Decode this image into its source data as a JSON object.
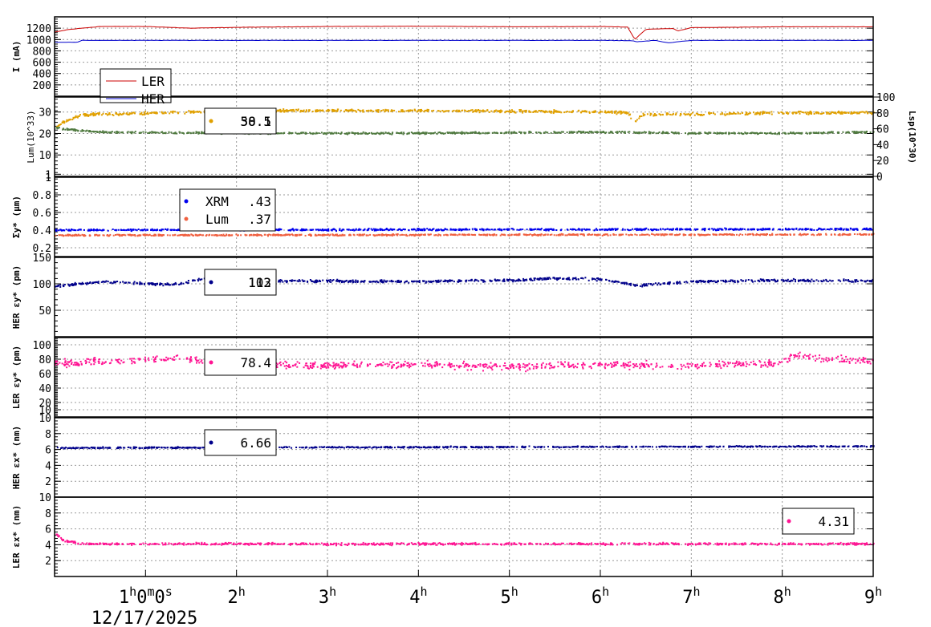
{
  "chart_data": {
    "type": "line",
    "x_axis": {
      "unit": "hours",
      "range": [
        0,
        9
      ],
      "tick_labels": [
        "1h0m0s",
        "2h",
        "3h",
        "4h",
        "5h",
        "6h",
        "7h",
        "8h",
        "9h"
      ],
      "tick_values": [
        1,
        2,
        3,
        4,
        5,
        6,
        7,
        8,
        9
      ],
      "date_label": "12/17/2025"
    },
    "grid": true,
    "panels": [
      {
        "ylabel": "I (mA)",
        "ylim": [
          0,
          1400
        ],
        "yticks": [
          200,
          400,
          600,
          800,
          1000,
          1200
        ],
        "legend": {
          "placement": "bottom-left",
          "entries": [
            "LER",
            "HER"
          ]
        },
        "series": [
          {
            "name": "LER",
            "color": "#cc0000",
            "style": "line",
            "x": [
              0,
              0.15,
              0.3,
              0.5,
              1,
              1.5,
              2,
              3,
              4,
              5,
              6,
              6.3,
              6.38,
              6.5,
              6.8,
              6.85,
              7,
              8,
              9
            ],
            "y": [
              1130,
              1175,
              1200,
              1230,
              1230,
              1200,
              1215,
              1230,
              1235,
              1225,
              1230,
              1220,
              1000,
              1180,
              1195,
              1150,
              1210,
              1225,
              1225
            ]
          },
          {
            "name": "HER",
            "color": "#0000cc",
            "style": "line",
            "x": [
              0,
              0.25,
              0.3,
              1,
              2,
              3,
              4,
              5,
              6,
              6.35,
              6.4,
              6.6,
              6.75,
              6.9,
              7,
              8,
              9
            ],
            "y": [
              955,
              950,
              985,
              985,
              985,
              985,
              985,
              985,
              985,
              980,
              960,
              985,
              940,
              970,
              985,
              985,
              985
            ]
          }
        ]
      },
      {
        "ylabel": "Lum(10^33)",
        "ylim": [
          0,
          37
        ],
        "yticks": [
          1,
          10,
          20,
          30
        ],
        "y2label": "Lsp(10^30)",
        "y2lim": [
          0,
          100
        ],
        "y2ticks": [
          0,
          20,
          40,
          60,
          80,
          100
        ],
        "legend": {
          "placement": "top-left",
          "entries": [
            "50.5",
            "38.1"
          ]
        },
        "series": [
          {
            "color": "#e0a000",
            "style": "dots",
            "level": 30.5,
            "spread": 0.9,
            "x": [
              0,
              0.1,
              0.3,
              2,
              4,
              6,
              6.3,
              6.36,
              6.45,
              8,
              9
            ],
            "y": [
              23,
              26,
              29,
              31,
              31,
              30.5,
              30,
              25,
              29,
              30,
              30
            ]
          },
          {
            "color": "#507a40",
            "style": "dots",
            "level": 21,
            "spread": 0.6,
            "x": [
              0,
              0.2,
              0.5,
              2,
              4,
              6,
              7,
              8,
              9
            ],
            "y": [
              23,
              22,
              21,
              20.5,
              20.5,
              21,
              20.5,
              20.5,
              21
            ]
          }
        ]
      },
      {
        "ylabel": "Σy* (μm)",
        "ylim": [
          0.1,
          1.0
        ],
        "yticks": [
          0.2,
          0.4,
          0.6,
          0.8,
          1
        ],
        "legend": {
          "placement": "top-left",
          "entries": [
            {
              "name": "XRM",
              "value": ".43"
            },
            {
              "name": "Lum",
              "value": ".37"
            }
          ]
        },
        "series": [
          {
            "name": "XRM",
            "color": "#0000ee",
            "style": "dots",
            "x": [
              0,
              9
            ],
            "y": [
              0.41,
              0.42
            ],
            "spread": 0.015
          },
          {
            "name": "Lum",
            "color": "#f06040",
            "style": "dots",
            "x": [
              0,
              9
            ],
            "y": [
              0.35,
              0.36
            ],
            "spread": 0.012
          }
        ]
      },
      {
        "ylabel": "HER εy* (pm)",
        "ylim": [
          0,
          150
        ],
        "yticks": [
          50,
          100,
          150
        ],
        "legend": {
          "placement": "top-left",
          "entries": [
            "103",
            "112"
          ]
        },
        "series": [
          {
            "color": "#00008b",
            "style": "dots",
            "x": [
              0,
              0.5,
              1.3,
              1.6,
              2,
              4,
              5,
              5.5,
              6,
              6.4,
              7,
              8,
              9
            ],
            "y": [
              97,
              105,
              100,
              110,
              107,
              106,
              108,
              112,
              110,
              98,
              106,
              108,
              107
            ],
            "spread": 3.5
          }
        ]
      },
      {
        "ylabel": "LER εy* (pm)",
        "ylim": [
          0,
          110
        ],
        "yticks": [
          10,
          20,
          40,
          60,
          80,
          100
        ],
        "legend": {
          "placement": "top-left",
          "entries": [
            "78.4"
          ]
        },
        "series": [
          {
            "color": "#ff1493",
            "style": "dots",
            "x": [
              0,
              1,
              1.3,
              2,
              3,
              4,
              5,
              6,
              7,
              8,
              8.1,
              9
            ],
            "y": [
              75,
              80,
              82,
              75,
              72,
              74,
              70,
              74,
              72,
              76,
              85,
              78
            ],
            "spread": 7
          }
        ]
      },
      {
        "ylabel": "HER εx* (nm)",
        "ylim": [
          0,
          10
        ],
        "yticks": [
          2,
          4,
          6,
          8,
          10
        ],
        "legend": {
          "placement": "top-left",
          "entries": [
            "6.66"
          ]
        },
        "series": [
          {
            "color": "#00008b",
            "style": "dots",
            "x": [
              0,
              9
            ],
            "y": [
              6.3,
              6.5
            ],
            "spread": 0.12
          }
        ]
      },
      {
        "ylabel": "LER εx* (nm)",
        "ylim": [
          0,
          10
        ],
        "yticks": [
          2,
          4,
          6,
          8,
          10
        ],
        "legend": {
          "placement": "top-right",
          "entries": [
            "4.31"
          ]
        },
        "series": [
          {
            "color": "#ff1493",
            "style": "dots",
            "x": [
              0,
              0.1,
              0.3,
              9
            ],
            "y": [
              5.5,
              4.6,
              4.2,
              4.2
            ],
            "spread": 0.2
          }
        ]
      }
    ]
  }
}
